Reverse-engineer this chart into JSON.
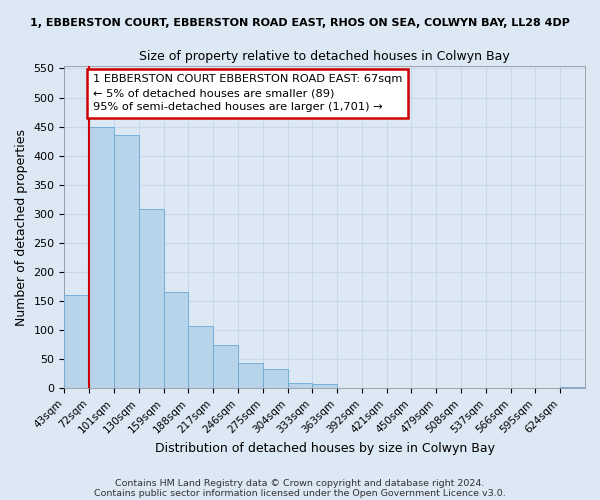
{
  "title_top": "1, EBBERSTON COURT, EBBERSTON ROAD EAST, RHOS ON SEA, COLWYN BAY, LL28 4DP",
  "title_main": "Size of property relative to detached houses in Colwyn Bay",
  "xlabel": "Distribution of detached houses by size in Colwyn Bay",
  "ylabel": "Number of detached properties",
  "bin_labels": [
    "43sqm",
    "72sqm",
    "101sqm",
    "130sqm",
    "159sqm",
    "188sqm",
    "217sqm",
    "246sqm",
    "275sqm",
    "304sqm",
    "333sqm",
    "363sqm",
    "392sqm",
    "421sqm",
    "450sqm",
    "479sqm",
    "508sqm",
    "537sqm",
    "566sqm",
    "595sqm",
    "624sqm"
  ],
  "bar_heights": [
    160,
    450,
    435,
    308,
    165,
    108,
    74,
    43,
    33,
    10,
    8,
    1,
    0,
    0,
    0,
    0,
    0,
    0,
    0,
    0,
    2
  ],
  "bar_color": "#b8d4ea",
  "bar_edge_color": "#6aaad4",
  "annotation_title": "1 EBBERSTON COURT EBBERSTON ROAD EAST: 67sqm",
  "annotation_line1": "← 5% of detached houses are smaller (89)",
  "annotation_line2": "95% of semi-detached houses are larger (1,701) →",
  "annotation_box_facecolor": "#ffffff",
  "annotation_box_edgecolor": "#cc0000",
  "footer1": "Contains HM Land Registry data © Crown copyright and database right 2024.",
  "footer2": "Contains public sector information licensed under the Open Government Licence v3.0.",
  "ylim": [
    0,
    555
  ],
  "yticks": [
    0,
    50,
    100,
    150,
    200,
    250,
    300,
    350,
    400,
    450,
    500,
    550
  ],
  "red_line_color": "#cc0000",
  "grid_color": "#c8d8ec",
  "background_color": "#dce8f4"
}
